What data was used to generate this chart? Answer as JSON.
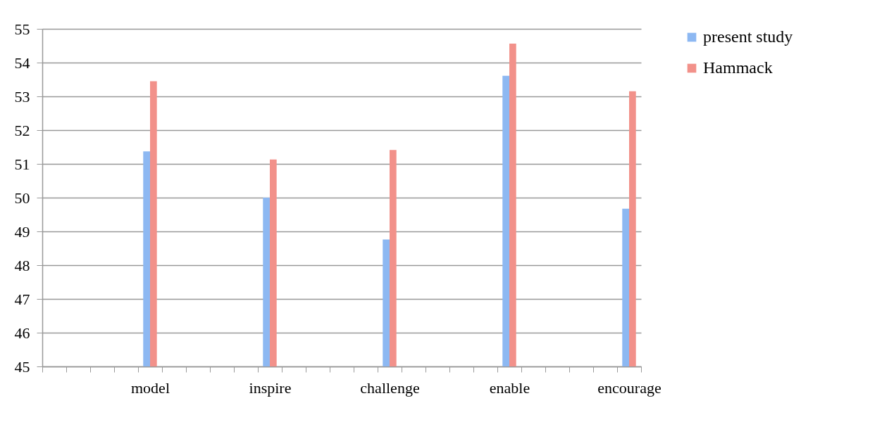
{
  "chart_data": {
    "type": "bar",
    "categories": [
      null,
      null,
      null,
      null,
      "model",
      null,
      null,
      null,
      null,
      "inspire",
      null,
      null,
      null,
      null,
      "challenge",
      null,
      null,
      null,
      null,
      "enable",
      null,
      null,
      null,
      null,
      "encourage"
    ],
    "series": [
      {
        "name": "present study",
        "color": "#8db8f2",
        "values": [
          null,
          null,
          null,
          null,
          51.37,
          null,
          null,
          null,
          null,
          50.0,
          null,
          null,
          null,
          null,
          48.76,
          null,
          null,
          null,
          null,
          53.61,
          null,
          null,
          null,
          null,
          49.67
        ]
      },
      {
        "name": "Hammack",
        "color": "#f2918a",
        "values": [
          null,
          null,
          null,
          null,
          53.45,
          null,
          null,
          null,
          null,
          51.13,
          null,
          null,
          null,
          null,
          51.41,
          null,
          null,
          null,
          null,
          54.56,
          null,
          null,
          null,
          null,
          53.15
        ]
      }
    ],
    "ylim": [
      45,
      55
    ],
    "yticks": [
      45,
      46,
      47,
      48,
      49,
      50,
      51,
      52,
      53,
      54,
      55
    ],
    "grid": "y",
    "legend": "right"
  }
}
